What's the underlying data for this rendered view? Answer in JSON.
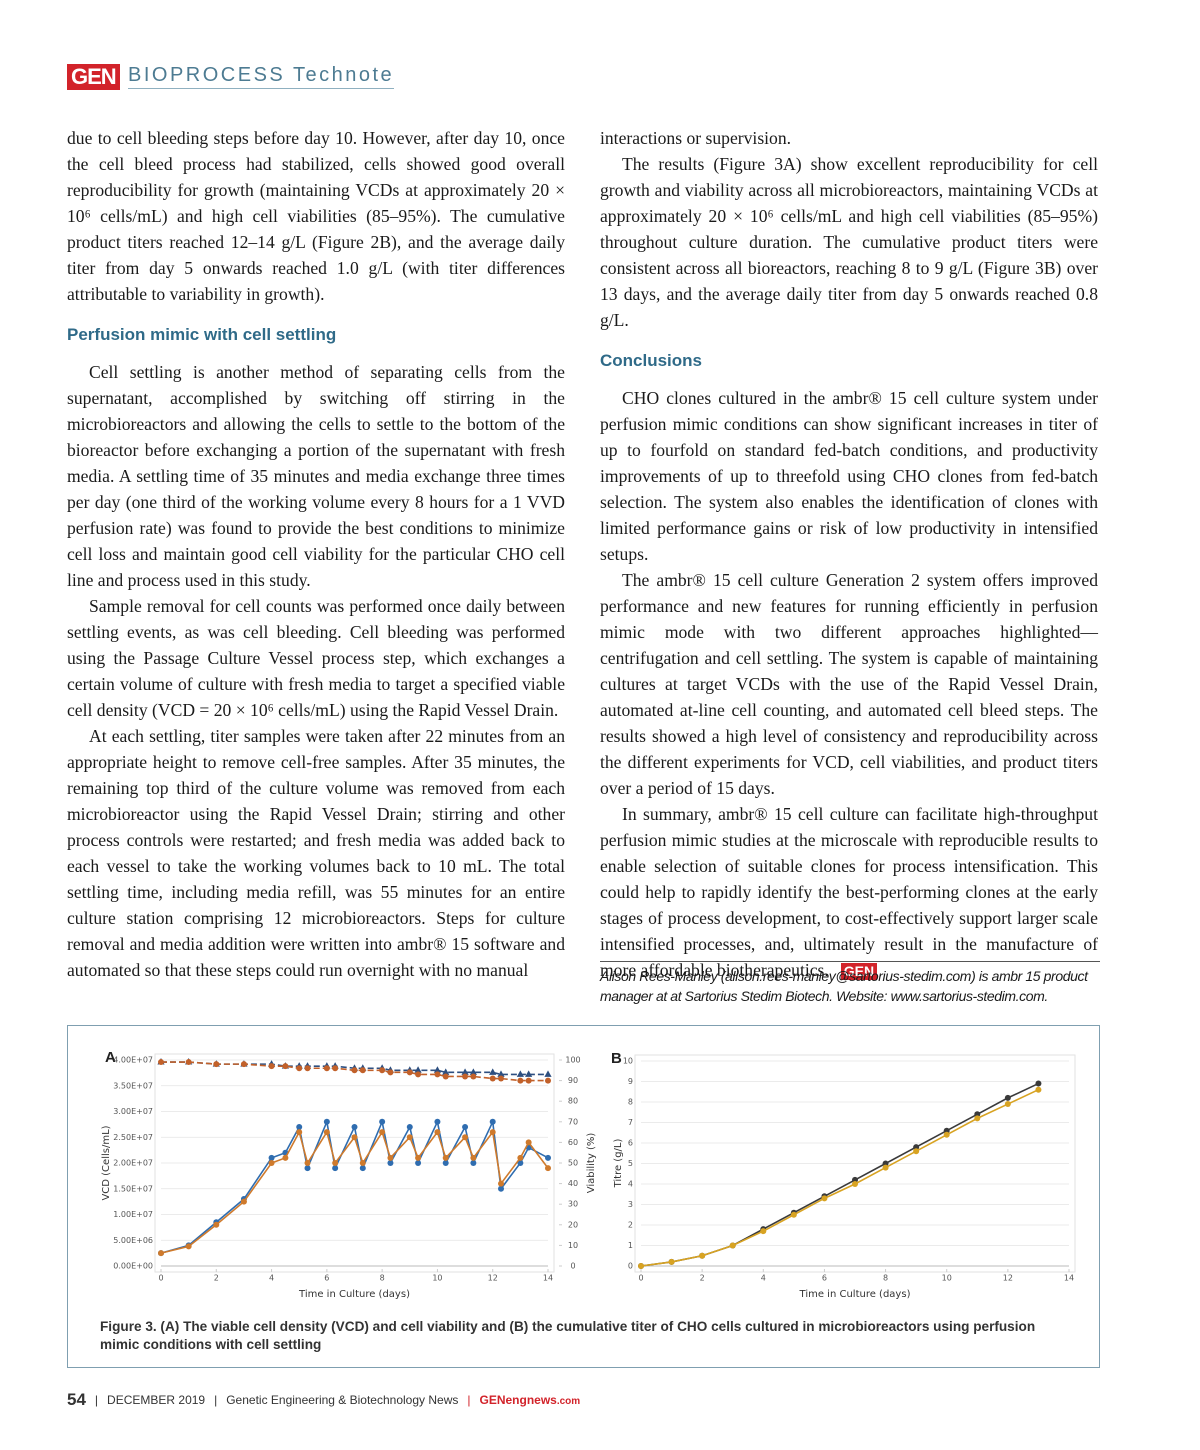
{
  "header": {
    "logo": "GEN",
    "section": "BIOPROCESS Technote"
  },
  "left_column": {
    "intro": "due to cell bleeding steps before day 10. However, after day 10, once the cell bleed process had stabilized, cells showed good overall reproducibility for growth (maintaining VCDs at approximately 20 × 10⁶ cells/mL) and high cell viabilities (85–95%). The cumulative product titers reached 12–14 g/L (Figure 2B), and the average daily titer from day 5 onwards reached 1.0 g/L (with titer differences attributable to variability in growth).",
    "heading": "Perfusion mimic with cell settling",
    "paragraphs": [
      "Cell settling is another method of separating cells from the supernatant, accomplished by switching off stirring in the microbioreactors and allowing the cells to settle to the bottom of the bioreactor before exchanging a portion of the supernatant with fresh media. A settling time of 35 minutes and media exchange three times per day (one third of the working volume every 8 hours for a 1 VVD perfusion rate) was found to provide the best conditions to minimize cell loss and maintain good cell viability for the particular CHO cell line and process used in this study.",
      "Sample removal for cell counts was performed once daily between settling events, as was cell bleeding. Cell bleeding was performed using the Passage Culture Vessel process step, which exchanges a certain volume of culture with fresh media to target a specified viable cell density (VCD = 20 × 10⁶ cells/mL) using the Rapid Vessel Drain.",
      "At each settling, titer samples were taken after 22 minutes from an appropriate height to remove cell-free samples. After 35 minutes, the remaining top third of the culture volume was removed from each microbioreactor using the Rapid Vessel Drain; stirring and other process controls were restarted; and fresh media was added back to each vessel to take the working volumes back to 10 mL. The total settling time, including media refill, was 55 minutes for an entire culture station comprising 12 microbioreactors. Steps for culture removal and media addition were written into ambr® 15 software and automated so that these steps could run overnight with no manual"
    ]
  },
  "right_column": {
    "intro": [
      "interactions or supervision.",
      "The results (Figure 3A) show excellent reproducibility for cell growth and viability across all microbioreactors, maintaining VCDs at approximately 20 × 10⁶ cells/mL and high cell viabilities (85–95%) throughout culture duration. The cumulative product titers were consistent across all bioreactors, reaching 8 to 9 g/L (Figure 3B) over 13 days, and the average daily titer from day 5 onwards reached 0.8 g/L."
    ],
    "heading": "Conclusions",
    "paragraphs": [
      "CHO clones cultured in the ambr® 15 cell culture system under perfusion mimic conditions can show significant increases in titer of up to fourfold on standard fed-batch conditions, and productivity improvements of up to threefold using CHO clones from fed-batch selection. The system also enables the identification of clones with limited performance gains or risk of low productivity in intensified setups.",
      "The ambr® 15 cell culture Generation 2 system offers improved performance and new features for running efficiently in perfusion mimic mode with two different approaches highlighted—centrifugation and cell settling. The system is capable of maintaining cultures at target VCDs with the use of the Rapid Vessel Drain, automated at-line cell counting, and automated cell bleed steps. The results showed a high level of consistency and reproducibility across the different experiments for VCD, cell viabilities, and product titers over a period of 15 days.",
      "In summary, ambr® 15 cell culture can facilitate high-throughput perfusion mimic studies at the microscale with reproducible results to enable selection of suitable clones for process intensification. This could help to rapidly identify the best-performing clones at the early stages of process development, to cost-effectively support larger scale intensified processes, and, ultimately result in the manufacture of more affordable biotherapeutics."
    ],
    "end_mark": "GEN",
    "author_note": "Alison Rees-Manley (alison.rees-manley@sartorius-stedim.com) is ambr 15 product manager at at Sartorius Stedim Biotech. Website: www.sartorius-stedim.com."
  },
  "figure": {
    "caption": "Figure 3. (A) The viable cell density (VCD) and cell viability and (B) the cumulative titer of CHO cells cultured in microbioreactors using perfusion mimic conditions with cell settling"
  },
  "chart_data": [
    {
      "type": "line",
      "panel": "A",
      "xlabel": "Time in Culture (days)",
      "ylabel": "VCD (Cells/mL)",
      "y2label": "Viability (%)",
      "x": [
        0,
        1,
        2,
        3,
        4,
        4.5,
        5,
        5.3,
        6,
        6.3,
        7,
        7.3,
        8,
        8.3,
        9,
        9.3,
        10,
        10.3,
        11,
        11.3,
        12,
        12.3,
        13,
        13.3,
        14
      ],
      "xlim": [
        0,
        14
      ],
      "xticks": [
        0,
        2,
        4,
        6,
        8,
        10,
        12,
        14
      ],
      "ylim": [
        0,
        40000000
      ],
      "yticks": [
        {
          "value": 0,
          "label": "0.00E+00"
        },
        {
          "value": 5000000,
          "label": "5.00E+06"
        },
        {
          "value": 10000000,
          "label": "1.00E+07"
        },
        {
          "value": 15000000,
          "label": "1.50E+07"
        },
        {
          "value": 20000000,
          "label": "2.00E+07"
        },
        {
          "value": 25000000,
          "label": "2.50E+07"
        },
        {
          "value": 30000000,
          "label": "3.00E+07"
        },
        {
          "value": 35000000,
          "label": "3.50E+07"
        },
        {
          "value": 40000000,
          "label": "4.00E+07"
        }
      ],
      "y2lim": [
        0,
        100
      ],
      "y2ticks": [
        0,
        10,
        20,
        30,
        40,
        50,
        60,
        70,
        80,
        90,
        100
      ],
      "grid": true,
      "series": [
        {
          "color": "#2f6db0",
          "marker": "circle",
          "line_style": "solid",
          "values": [
            2500000,
            4000000,
            8500000,
            13000000,
            21000000,
            22000000,
            27000000,
            19000000,
            28000000,
            19000000,
            27000000,
            19000000,
            28000000,
            20000000,
            27000000,
            20000000,
            28000000,
            20000000,
            27000000,
            20000000,
            28000000,
            15000000,
            20000000,
            23000000,
            21000000
          ]
        },
        {
          "color": "#cf7a2c",
          "marker": "circle",
          "line_style": "solid",
          "values": [
            2500000,
            3800000,
            8000000,
            12500000,
            20000000,
            21000000,
            26000000,
            20000000,
            26000000,
            20000000,
            25000000,
            20000000,
            26000000,
            21000000,
            25000000,
            21000000,
            26000000,
            21000000,
            25000000,
            21000000,
            26000000,
            16000000,
            21000000,
            24000000,
            19000000
          ]
        },
        {
          "color": "#2d4f80",
          "marker": "triangle",
          "line_style": "dashed",
          "axis": "y2",
          "values": [
            99,
            99,
            98,
            98,
            98,
            97,
            97,
            97,
            97,
            97,
            96,
            96,
            96,
            95,
            95,
            95,
            95,
            94,
            94,
            94,
            94,
            93,
            93,
            93,
            93
          ]
        },
        {
          "color": "#c2612a",
          "marker": "circle",
          "line_style": "dashed",
          "axis": "y2",
          "values": [
            99,
            99,
            98,
            98,
            97,
            97,
            96,
            96,
            96,
            96,
            95,
            95,
            95,
            94,
            94,
            93,
            93,
            92,
            92,
            92,
            91,
            91,
            90,
            90,
            90
          ]
        }
      ]
    },
    {
      "type": "line",
      "panel": "B",
      "xlabel": "Time in Culture (days)",
      "ylabel": "Titre (g/L)",
      "x": [
        0,
        1,
        2,
        3,
        4,
        5,
        6,
        7,
        8,
        9,
        10,
        11,
        12,
        13
      ],
      "xlim": [
        0,
        14
      ],
      "xticks": [
        0,
        2,
        4,
        6,
        8,
        10,
        12,
        14
      ],
      "ylim": [
        0,
        10
      ],
      "yticks": [
        0,
        1,
        2,
        3,
        4,
        5,
        6,
        7,
        8,
        9,
        10
      ],
      "grid": true,
      "series": [
        {
          "color": "#3a3a3a",
          "marker": "circle",
          "line_style": "solid",
          "values": [
            0,
            0.2,
            0.5,
            1.0,
            1.8,
            2.6,
            3.4,
            4.2,
            5.0,
            5.8,
            6.6,
            7.4,
            8.2,
            8.9
          ]
        },
        {
          "color": "#d8a322",
          "marker": "circle",
          "line_style": "solid",
          "values": [
            0,
            0.2,
            0.5,
            1.0,
            1.7,
            2.5,
            3.3,
            4.0,
            4.8,
            5.6,
            6.4,
            7.2,
            7.9,
            8.6
          ]
        }
      ]
    }
  ],
  "footer": {
    "page": "54",
    "date": "DECEMBER 2019",
    "publication": "Genetic Engineering & Biotechnology News",
    "site": "GENengnews",
    "site_suffix": ".com"
  }
}
